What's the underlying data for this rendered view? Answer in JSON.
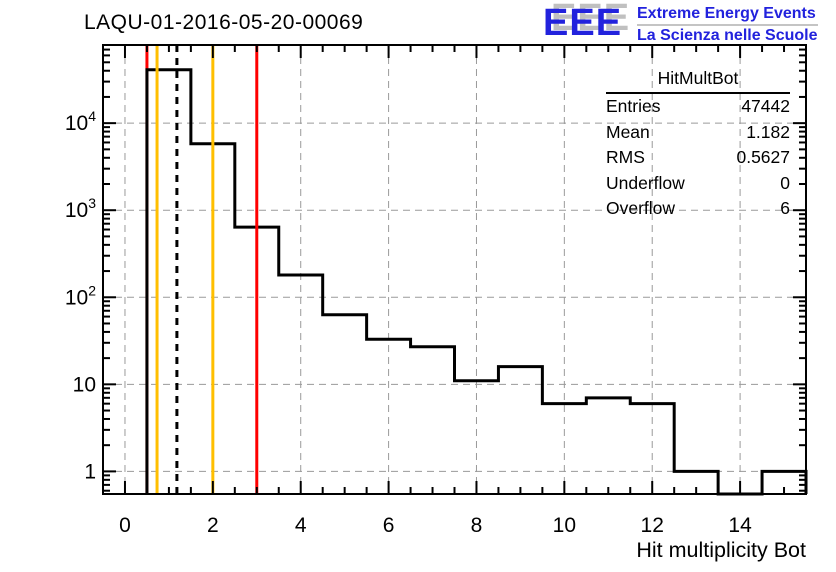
{
  "header": {
    "logo": {
      "acronym": "EEE",
      "line1": "Extreme Energy Events",
      "line2": "La Scienza nelle Scuole",
      "blue": "#2222dd",
      "shadow_gray": "#c0c0c0"
    }
  },
  "stats_box": {
    "title": "HitMultBot",
    "rows": [
      {
        "label": "Entries",
        "value": "47442"
      },
      {
        "label": "Mean",
        "value": "1.182"
      },
      {
        "label": "RMS",
        "value": "0.5627"
      },
      {
        "label": "Underflow",
        "value": "0"
      },
      {
        "label": "Overflow",
        "value": "6"
      }
    ]
  },
  "chart_data": {
    "type": "bar",
    "subtype": "step-histogram",
    "title": "LAQU-01-2016-05-20-00069",
    "xlabel": "Hit multiplicity Bot",
    "ylabel": "",
    "x_range": [
      -0.5,
      15.5
    ],
    "y_scale": "log",
    "y_range": [
      0.55,
      79000
    ],
    "bin_width": 1,
    "bin_centers": [
      0,
      1,
      2,
      3,
      4,
      5,
      6,
      7,
      8,
      9,
      10,
      11,
      12,
      13,
      14,
      15
    ],
    "counts": [
      0,
      41000,
      5800,
      640,
      180,
      63,
      33,
      27,
      11,
      16,
      6,
      7,
      6,
      1,
      0,
      1
    ],
    "grid": true,
    "grid_color": "#9a9a9a",
    "line_color": "#000000",
    "x_major_ticks": [
      0,
      2,
      4,
      6,
      8,
      10,
      12,
      14
    ],
    "x_tick_labels": [
      "0",
      "2",
      "4",
      "6",
      "8",
      "10",
      "12",
      "14"
    ],
    "x_minor_step": 0.5,
    "y_major_ticks": [
      1,
      10,
      100,
      1000,
      10000
    ],
    "y_tick_labels": [
      "1",
      "10",
      "10^2",
      "10^3",
      "10^4"
    ],
    "marker_lines": [
      {
        "x": 0.5,
        "color": "#ff0000",
        "style": "solid",
        "layer": "below"
      },
      {
        "x": 0.73,
        "color": "#ffbf00",
        "style": "solid",
        "layer": "above"
      },
      {
        "x": 1.182,
        "color": "#000000",
        "style": "dashed",
        "layer": "above"
      },
      {
        "x": 2.0,
        "color": "#ffbf00",
        "style": "solid",
        "layer": "above"
      },
      {
        "x": 3.0,
        "color": "#ff0000",
        "style": "solid",
        "layer": "above"
      }
    ]
  }
}
